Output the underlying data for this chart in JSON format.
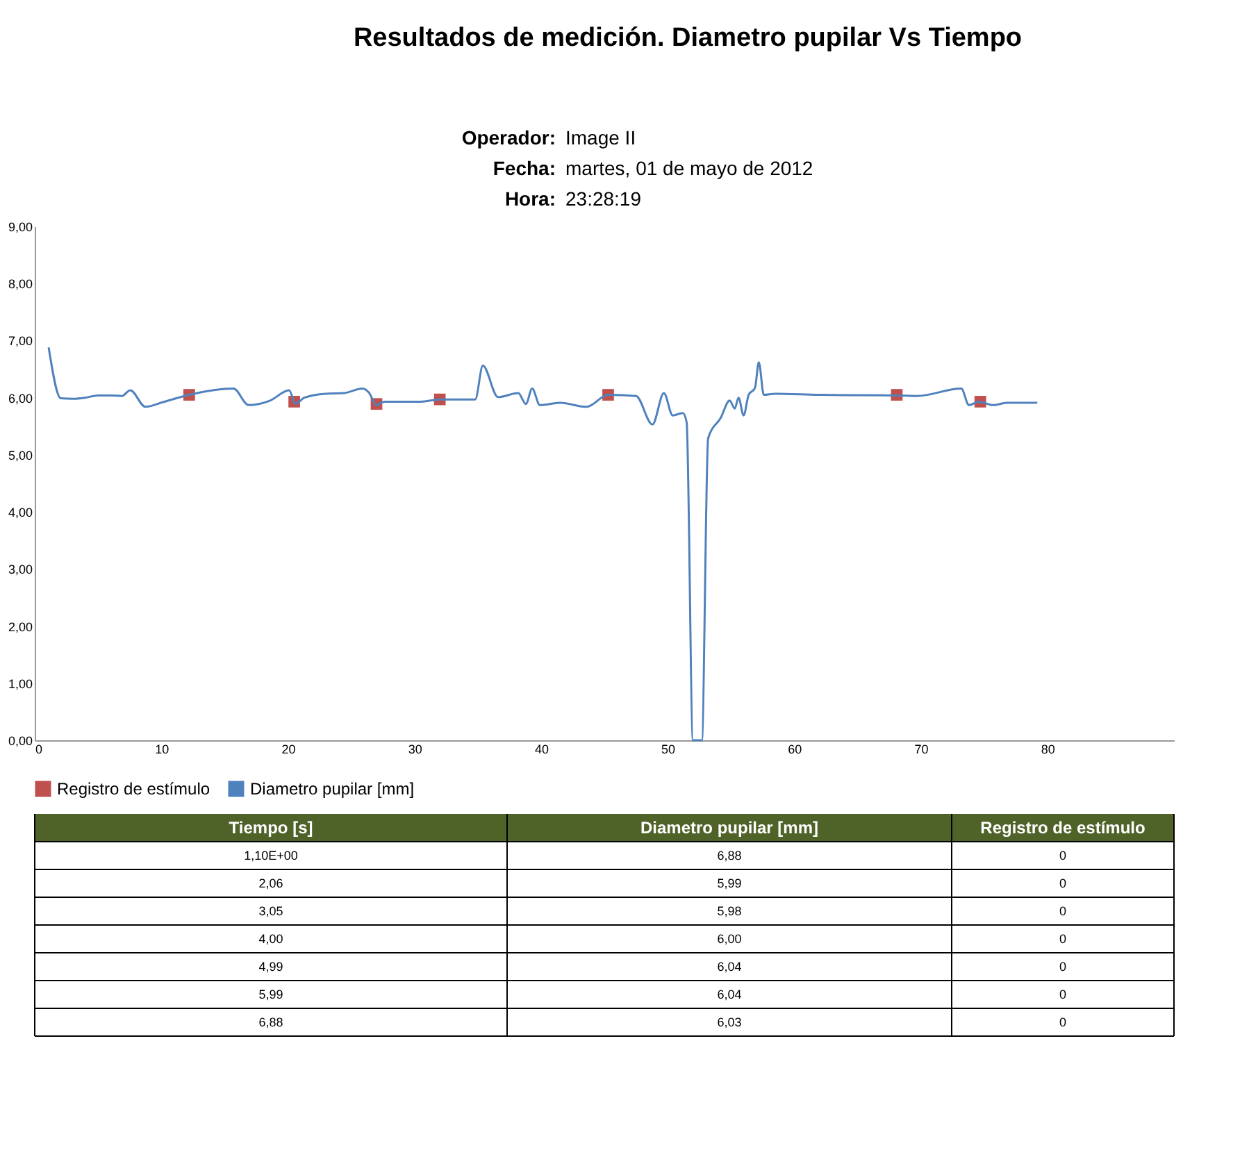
{
  "chart_data": {
    "type": "line",
    "title": "Resultados de medición. Diametro pupilar Vs Tiempo",
    "annotations": [
      "Operador: Image II",
      "Fecha: martes, 01 de mayo de 2012",
      "Hora: 23:28:19",
      "Tiempo [s]",
      "Diametro pupilar [mm]",
      "Registro de estímulo",
      "1,10E+00",
      "6,88",
      "0",
      "2,06",
      "5,99",
      "0",
      "3,05",
      "5,98",
      "0",
      "4,00",
      "6,00",
      "0",
      "4,99",
      "6,04",
      "0",
      "5,99",
      "6,04",
      "0",
      "6,88",
      "6,03",
      "0"
    ],
    "series": [
      {
        "name": "Registro de estímulo",
        "type": "scatter",
        "marker": "square",
        "color": "#c0504d",
        "x": [
          12.2,
          20.5,
          27.0,
          32.0,
          45.3,
          68.1,
          74.7
        ],
        "values": [
          6.05,
          5.93,
          5.89,
          5.97,
          6.05,
          6.05,
          5.93
        ]
      },
      {
        "name": "Diametro pupilar [mm]",
        "color": "#4f81bd",
        "x": [
          1.1,
          2.06,
          3.05,
          4.0,
          4.99,
          5.99,
          6.88,
          7.55,
          8.74,
          10.1,
          12.2,
          15.7,
          16.9,
          18.6,
          20.1,
          20.6,
          21.3,
          23.0,
          24.4,
          25.9,
          26.4,
          27.0,
          27.6,
          30.5,
          32.0,
          34.8,
          35.4,
          36.6,
          38.2,
          38.8,
          39.3,
          39.9,
          41.5,
          43.6,
          45.3,
          47.5,
          48.8,
          49.7,
          50.4,
          51.2,
          51.5,
          52.0,
          52.7,
          53.2,
          54.2,
          54.9,
          55.3,
          55.6,
          56.0,
          56.4,
          56.9,
          57.2,
          57.6,
          58.5,
          61.9,
          68.1,
          69.7,
          73.2,
          73.8,
          74.6,
          75.7,
          76.8,
          79.2
        ],
        "values": [
          6.88,
          5.99,
          5.98,
          6.0,
          6.04,
          6.04,
          6.03,
          6.13,
          5.84,
          5.92,
          6.05,
          6.16,
          5.87,
          5.95,
          6.13,
          5.89,
          6.0,
          6.07,
          6.08,
          6.16,
          6.09,
          5.87,
          5.93,
          5.93,
          5.97,
          5.97,
          6.56,
          6.01,
          6.08,
          5.89,
          6.16,
          5.87,
          5.91,
          5.84,
          6.05,
          6.03,
          5.53,
          6.08,
          5.69,
          5.73,
          5.57,
          0,
          0,
          5.29,
          5.65,
          5.95,
          5.81,
          6.0,
          5.69,
          6.05,
          6.17,
          6.62,
          6.05,
          6.07,
          6.05,
          6.04,
          6.03,
          6.16,
          5.87,
          5.93,
          5.87,
          5.91,
          5.91
        ]
      }
    ],
    "xlim": [
      0,
      90
    ],
    "xticks": [
      0,
      10,
      20,
      30,
      40,
      50,
      60,
      70,
      80
    ],
    "ylim": [
      0,
      9
    ],
    "yticks": [
      {
        "value": 0,
        "label": "0,00"
      },
      {
        "value": 1,
        "label": "1,00"
      },
      {
        "value": 2,
        "label": "2,00"
      },
      {
        "value": 3,
        "label": "3,00"
      },
      {
        "value": 4,
        "label": "4,00"
      },
      {
        "value": 5,
        "label": "5,00"
      },
      {
        "value": 6,
        "label": "6,00"
      },
      {
        "value": 7,
        "label": "7,00"
      },
      {
        "value": 8,
        "label": "8,00"
      },
      {
        "value": 9,
        "label": "9,00"
      }
    ],
    "legend": "bottom",
    "grid": false
  }
}
